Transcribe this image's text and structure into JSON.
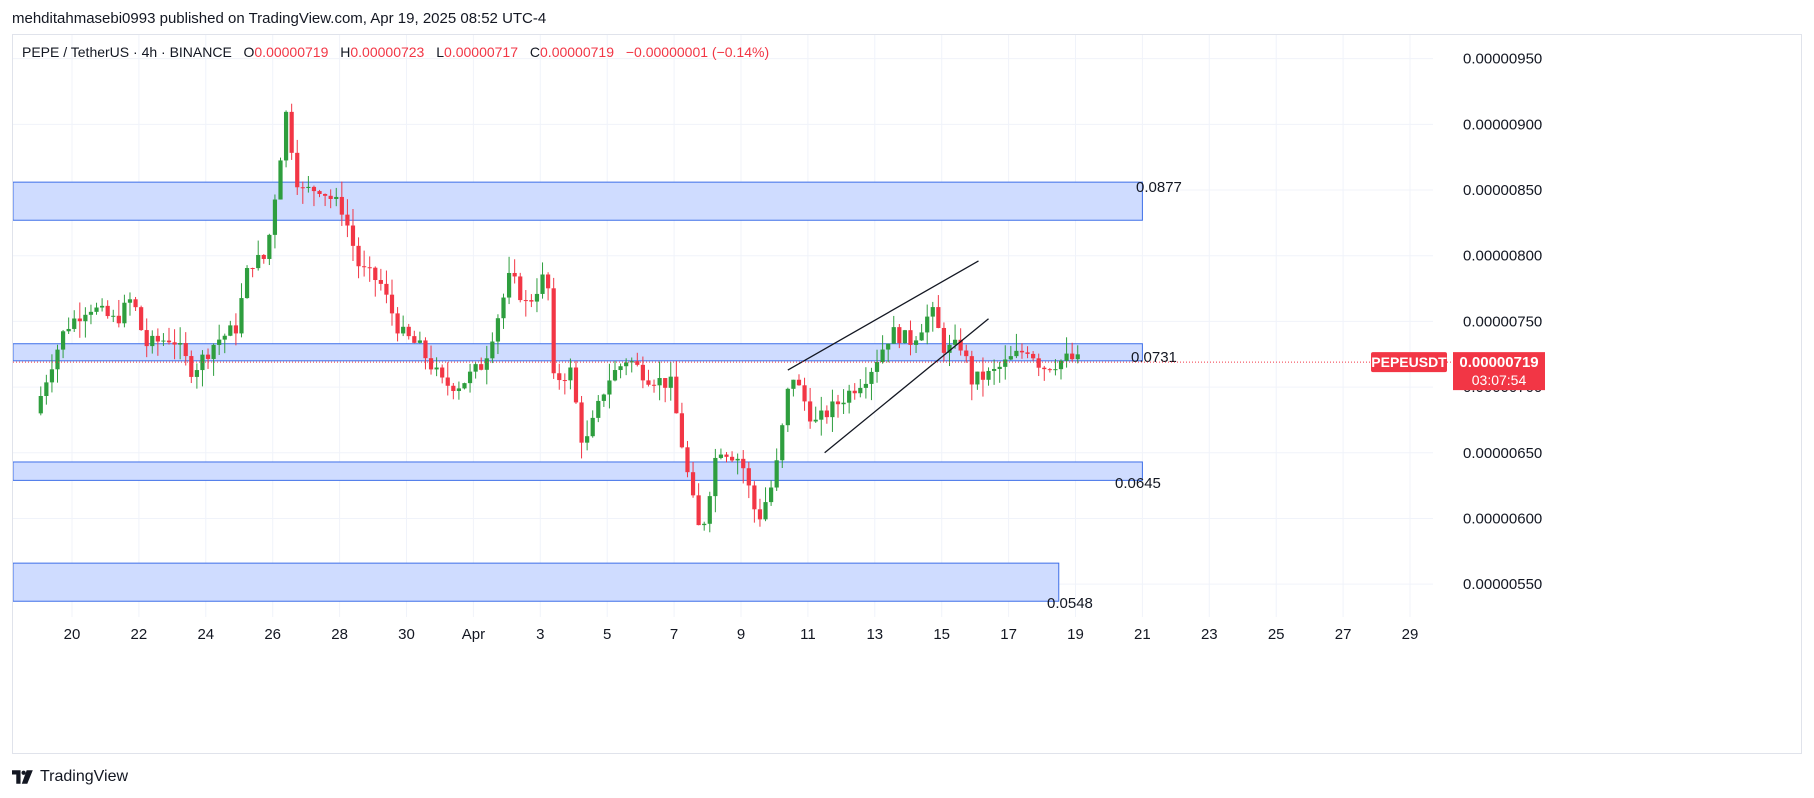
{
  "header": {
    "published_line": "mehditahmasebi0993 published on TradingView.com, Apr 19, 2025 08:52 UTC-4"
  },
  "legend": {
    "symbol_line": "PEPE / TetherUS · 4h · BINANCE",
    "open_label": "O",
    "open": "0.00000719",
    "high_label": "H",
    "high": "0.00000723",
    "low_label": "L",
    "low": "0.00000717",
    "close_label": "C",
    "close": "0.00000719",
    "change": "−0.00000001 (−0.14%)"
  },
  "footer": {
    "brand": "TradingView"
  },
  "colors": {
    "up": "#089981",
    "up_body": "#2e9e3e",
    "down": "#f23645",
    "zone_fill": "#cfdcff",
    "zone_stroke": "#3d6ee8",
    "price_tag": "#f23645",
    "grid": "#f0f3fa"
  },
  "chart_data": {
    "type": "candlestick",
    "symbol": "PEPEUSDT",
    "interval": "4h",
    "last_price": "0.00000719",
    "countdown": "03:07:54",
    "ylim": [
      5.25e-06,
      9.68e-06
    ],
    "y_ticks": [
      "0.00000950",
      "0.00000900",
      "0.00000850",
      "0.00000800",
      "0.00000750",
      "0.00000700",
      "0.00000650",
      "0.00000600",
      "0.00000550"
    ],
    "y_tick_values": [
      9.5e-06,
      9e-06,
      8.5e-06,
      8e-06,
      7.5e-06,
      7e-06,
      6.5e-06,
      6e-06,
      5.5e-06
    ],
    "x_ticks": [
      {
        "label": "20",
        "day": 1
      },
      {
        "label": "22",
        "day": 3
      },
      {
        "label": "24",
        "day": 5
      },
      {
        "label": "26",
        "day": 7
      },
      {
        "label": "28",
        "day": 9
      },
      {
        "label": "30",
        "day": 11
      },
      {
        "label": "Apr",
        "day": 13
      },
      {
        "label": "3",
        "day": 15
      },
      {
        "label": "5",
        "day": 17
      },
      {
        "label": "7",
        "day": 19
      },
      {
        "label": "9",
        "day": 21
      },
      {
        "label": "11",
        "day": 23
      },
      {
        "label": "13",
        "day": 25
      },
      {
        "label": "15",
        "day": 27
      },
      {
        "label": "17",
        "day": 29
      },
      {
        "label": "19",
        "day": 31
      },
      {
        "label": "21",
        "day": 33
      },
      {
        "label": "23",
        "day": 35
      },
      {
        "label": "25",
        "day": 37
      },
      {
        "label": "27",
        "day": 39
      },
      {
        "label": "29",
        "day": 41
      }
    ],
    "zones": [
      {
        "label": "0.0877",
        "top": 8.56e-06,
        "bottom": 8.27e-06,
        "end_day": 33.0
      },
      {
        "label": "0.0731",
        "top": 7.33e-06,
        "bottom": 7.2e-06,
        "end_day": 33.0
      },
      {
        "label": "0.0645",
        "top": 6.43e-06,
        "bottom": 6.29e-06,
        "end_day": 33.0
      },
      {
        "label": "0.0548",
        "top": 5.66e-06,
        "bottom": 5.37e-06,
        "end_day": 30.5
      }
    ],
    "trendlines": [
      {
        "from_day": 22.4,
        "from_price": 7.13e-06,
        "to_day": 28.1,
        "to_price": 7.96e-06
      },
      {
        "from_day": 23.5,
        "from_price": 6.5e-06,
        "to_day": 28.4,
        "to_price": 7.52e-06
      }
    ],
    "candle_anchors": [
      [
        -0.1,
        6.8e-06
      ],
      [
        0.3,
        7.12e-06
      ],
      [
        0.8,
        7.45e-06
      ],
      [
        1.5,
        7.62e-06
      ],
      [
        2.3,
        7.5e-06
      ],
      [
        2.8,
        7.68e-06
      ],
      [
        3.2,
        7.32e-06
      ],
      [
        4.0,
        7.38e-06
      ],
      [
        4.6,
        7.12e-06
      ],
      [
        5.3,
        7.35e-06
      ],
      [
        5.9,
        7.45e-06
      ],
      [
        6.3,
        7.95e-06
      ],
      [
        6.8,
        7.98e-06
      ],
      [
        7.1,
        8.52e-06
      ],
      [
        7.4,
        9.08e-06
      ],
      [
        7.8,
        8.48e-06
      ],
      [
        8.4,
        8.52e-06
      ],
      [
        9.1,
        8.35e-06
      ],
      [
        9.6,
        7.9e-06
      ],
      [
        10.2,
        7.8e-06
      ],
      [
        10.8,
        7.42e-06
      ],
      [
        11.4,
        7.3e-06
      ],
      [
        12.1,
        7.02e-06
      ],
      [
        12.6,
        7.02e-06
      ],
      [
        13.3,
        7.18e-06
      ],
      [
        14.1,
        7.85e-06
      ],
      [
        14.6,
        7.62e-06
      ],
      [
        15.2,
        7.88e-06
      ],
      [
        15.4,
        7.05e-06
      ],
      [
        15.9,
        7.12e-06
      ],
      [
        16.3,
        6.52e-06
      ],
      [
        17.0,
        7.05e-06
      ],
      [
        17.6,
        7.22e-06
      ],
      [
        18.2,
        7.08e-06
      ],
      [
        18.9,
        7.02e-06
      ],
      [
        19.5,
        6.2e-06
      ],
      [
        19.8,
        5.85e-06
      ],
      [
        20.3,
        6.55e-06
      ],
      [
        21.0,
        6.45e-06
      ],
      [
        21.5,
        5.98e-06
      ],
      [
        22.0,
        6.3e-06
      ],
      [
        22.5,
        7.12e-06
      ],
      [
        23.2,
        6.72e-06
      ],
      [
        23.9,
        6.88e-06
      ],
      [
        24.8,
        7.1e-06
      ],
      [
        25.5,
        7.42e-06
      ],
      [
        26.1,
        7.35e-06
      ],
      [
        26.7,
        7.58e-06
      ],
      [
        27.1,
        7.28e-06
      ],
      [
        27.6,
        7.32e-06
      ],
      [
        27.9,
        7.05e-06
      ],
      [
        28.5,
        7.1e-06
      ],
      [
        29.1,
        7.22e-06
      ],
      [
        29.6,
        7.3e-06
      ],
      [
        30.0,
        7.15e-06
      ],
      [
        30.8,
        7.22e-06
      ],
      [
        31.2,
        7.19e-06
      ]
    ]
  }
}
